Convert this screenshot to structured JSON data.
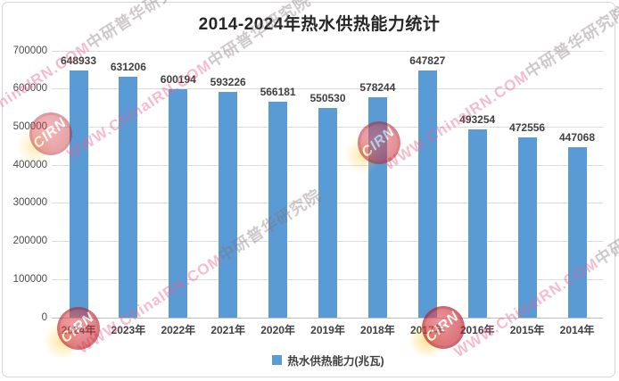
{
  "title": "2014-2024年热水供热能力统计",
  "legend": {
    "label": "热水供热能力(兆瓦)",
    "marker_color": "#5B9BD5"
  },
  "watermark": {
    "badge_text": "CIRN",
    "latin_text": "WWW.ChinaIRN.COM",
    "chinese_text": "中研普华研究院"
  },
  "chart_data": {
    "type": "bar",
    "title": "2014-2024年热水供热能力统计",
    "categories": [
      "2024年",
      "2023年",
      "2022年",
      "2021年",
      "2020年",
      "2019年",
      "2018年",
      "2017年",
      "2016年",
      "2015年",
      "2014年"
    ],
    "values": [
      648933,
      631206,
      600194,
      593226,
      566181,
      550530,
      578244,
      647827,
      493254,
      472556,
      447068
    ],
    "series_name": "热水供热能力(兆瓦)",
    "xlabel": "",
    "ylabel": "",
    "ylim": [
      0,
      700000
    ],
    "yticks": [
      0,
      100000,
      200000,
      300000,
      400000,
      500000,
      600000,
      700000
    ],
    "bar_color": "#5B9BD5",
    "grid": true,
    "legend_position": "bottom",
    "data_labels": true
  }
}
